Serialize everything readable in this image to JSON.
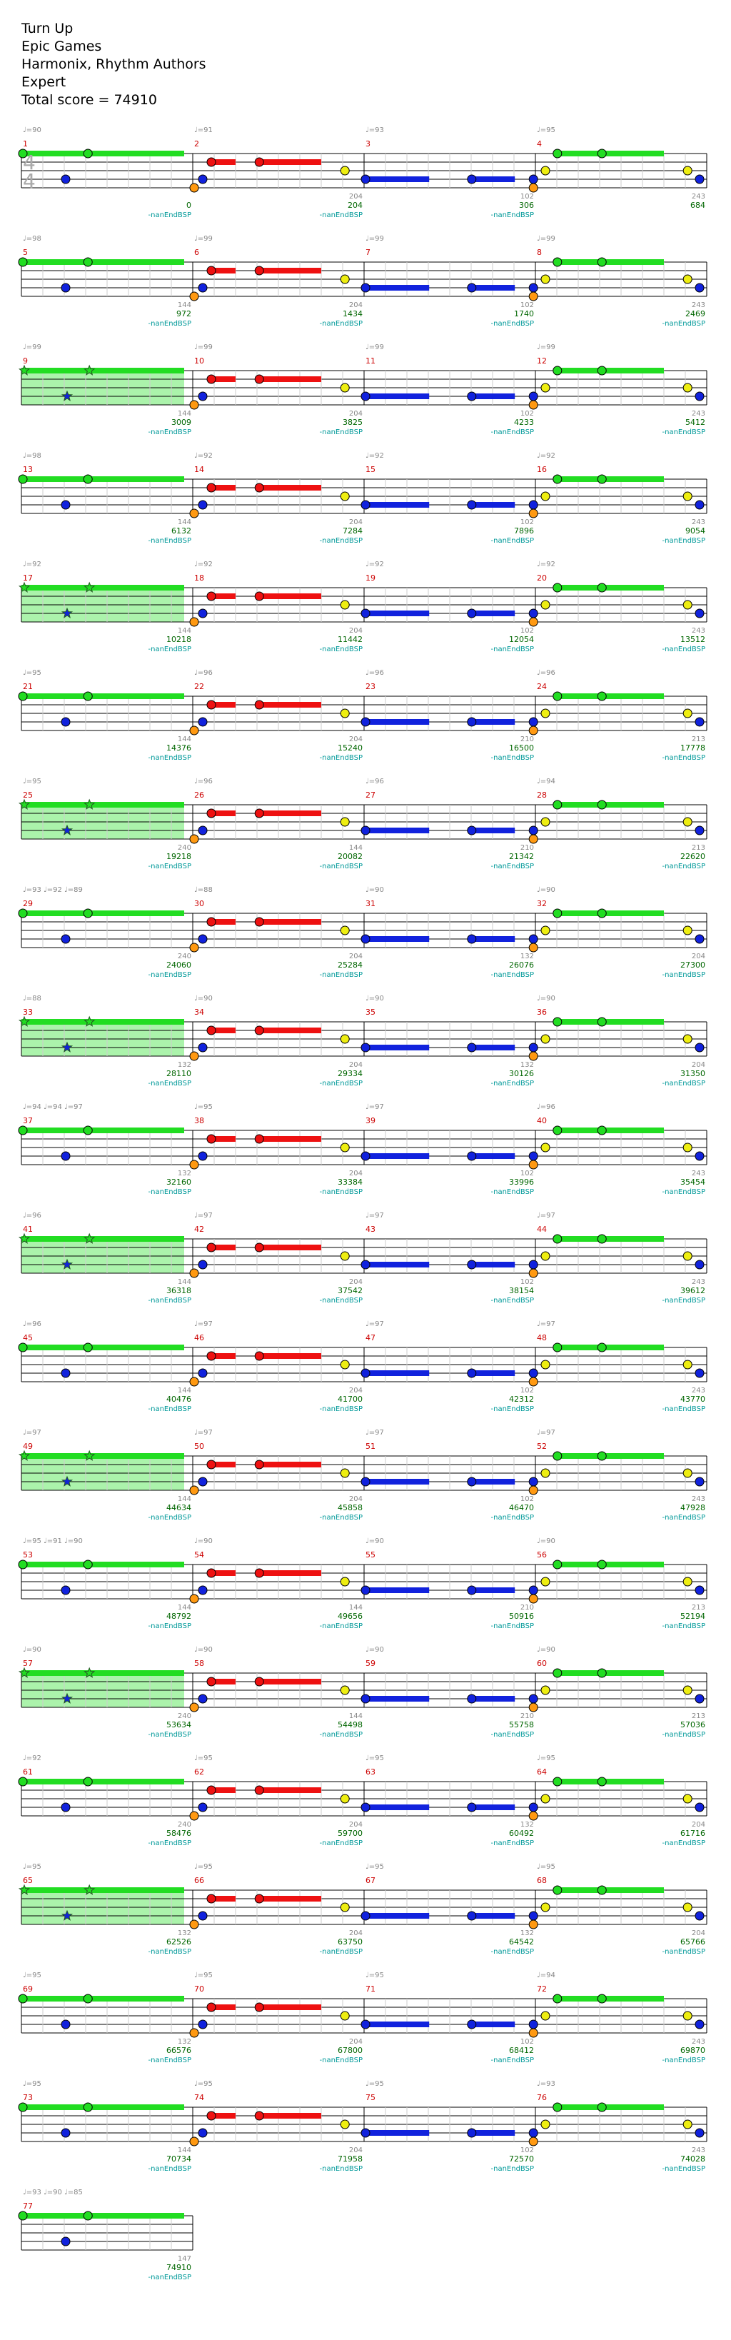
{
  "song": {
    "title": "Turn Up",
    "artist": "Epic Games",
    "charter": "Harmonix, Rhythm Authors",
    "difficulty": "Expert",
    "total_score_label": "Total score = 74910"
  },
  "time_signature": {
    "numerator": "4",
    "denominator": "4"
  },
  "colors": {
    "green": "#22dd22",
    "red": "#ee1111",
    "yellow": "#eeee11",
    "blue": "#1122dd",
    "orange": "#ff9911",
    "measure_number": "#cc0000",
    "score": "#006600",
    "label": "#009999",
    "tempo": "#888888",
    "star_power": "#88ee88"
  },
  "rows": [
    {
      "measures": [
        1,
        2,
        3,
        4
      ],
      "sp": false,
      "tempos": [
        "♩=90",
        "♩=91",
        "♩=93",
        "♩=95"
      ],
      "scores": [
        "0",
        "204",
        "306",
        "684"
      ],
      "bonus": [
        "",
        "204",
        "102",
        "243"
      ],
      "labels": [
        "-nanEndBSP",
        "-nanEndBSP",
        "-nanEndBSP"
      ]
    },
    {
      "measures": [
        5,
        6,
        7,
        8
      ],
      "sp": false,
      "tempos": [
        "♩=98",
        "♩=99",
        "♩=99",
        "♩=99"
      ],
      "scores": [
        "972",
        "1434",
        "1740",
        "2469"
      ],
      "bonus": [
        "144",
        "204",
        "102",
        "243"
      ],
      "labels": [
        "-nanEndBSP",
        "-nanEndBSP",
        "-nanEndBSP",
        "-nanEndBSP"
      ]
    },
    {
      "measures": [
        9,
        10,
        11,
        12
      ],
      "sp": true,
      "tempos": [
        "♩=99",
        "♩=99",
        "♩=99",
        "♩=99"
      ],
      "scores": [
        "3009",
        "3825",
        "4233",
        "5412"
      ],
      "bonus": [
        "144",
        "204",
        "102",
        "243"
      ],
      "labels": [
        "-nanEndBSP",
        "-nanEndBSP",
        "-nanEndBSP",
        "-nanEndBSP"
      ]
    },
    {
      "measures": [
        13,
        14,
        15,
        16
      ],
      "sp": false,
      "tempos": [
        "♩=98",
        "♩=92",
        "♩=92",
        "♩=92"
      ],
      "scores": [
        "6132",
        "7284",
        "7896",
        "9054"
      ],
      "bonus": [
        "144",
        "204",
        "102",
        "243"
      ],
      "labels": [
        "-nanEndBSP",
        "-nanEndBSP",
        "-nanEndBSP",
        "-nanEndBSP"
      ]
    },
    {
      "measures": [
        17,
        18,
        19,
        20
      ],
      "sp": true,
      "tempos": [
        "♩=92",
        "♩=92",
        "♩=92",
        "♩=92"
      ],
      "scores": [
        "10218",
        "11442",
        "12054",
        "13512"
      ],
      "bonus": [
        "144",
        "204",
        "102",
        "243"
      ],
      "labels": [
        "-nanEndBSP",
        "-nanEndBSP",
        "-nanEndBSP",
        "-nanEndBSP"
      ]
    },
    {
      "measures": [
        21,
        22,
        23,
        24
      ],
      "sp": false,
      "tempos": [
        "♩=95",
        "♩=96",
        "♩=96",
        "♩=96"
      ],
      "scores": [
        "14376",
        "15240",
        "16500",
        "17778"
      ],
      "bonus": [
        "144",
        "204",
        "210",
        "213"
      ],
      "labels": [
        "-nanEndBSP",
        "-nanEndBSP",
        "-nanEndBSP",
        "-nanEndBSP"
      ]
    },
    {
      "measures": [
        25,
        26,
        27,
        28
      ],
      "sp": true,
      "tempos": [
        "♩=95",
        "♩=96",
        "♩=96",
        "♩=94"
      ],
      "scores": [
        "19218",
        "20082",
        "21342",
        "22620"
      ],
      "bonus": [
        "240",
        "144",
        "210",
        "213"
      ],
      "labels": [
        "-nanEndBSP",
        "-nanEndBSP",
        "-nanEndBSP",
        "-nanEndBSP"
      ]
    },
    {
      "measures": [
        29,
        30,
        31,
        32
      ],
      "sp": false,
      "tempos": [
        "♩=93 ♩=92 ♩=89",
        "♩=88",
        "♩=90",
        "♩=90"
      ],
      "scores": [
        "24060",
        "25284",
        "26076",
        "27300"
      ],
      "bonus": [
        "240",
        "204",
        "132",
        "204"
      ],
      "labels": [
        "-nanEndBSP",
        "-nanEndBSP",
        "-nanEndBSP",
        "-nanEndBSP"
      ]
    },
    {
      "measures": [
        33,
        34,
        35,
        36
      ],
      "sp": true,
      "tempos": [
        "♩=88",
        "♩=90",
        "♩=90",
        "♩=90"
      ],
      "scores": [
        "28110",
        "29334",
        "30126",
        "31350"
      ],
      "bonus": [
        "132",
        "204",
        "132",
        "204"
      ],
      "labels": [
        "-nanEndBSP",
        "-nanEndBSP",
        "-nanEndBSP",
        "-nanEndBSP"
      ]
    },
    {
      "measures": [
        37,
        38,
        39,
        40
      ],
      "sp": false,
      "tempos": [
        "♩=94 ♩=94 ♩=97",
        "♩=95",
        "♩=97",
        "♩=96"
      ],
      "scores": [
        "32160",
        "33384",
        "33996",
        "35454"
      ],
      "bonus": [
        "132",
        "204",
        "102",
        "243"
      ],
      "labels": [
        "-nanEndBSP",
        "-nanEndBSP",
        "-nanEndBSP",
        "-nanEndBSP"
      ]
    },
    {
      "measures": [
        41,
        42,
        43,
        44
      ],
      "sp": true,
      "tempos": [
        "♩=96",
        "♩=97",
        "♩=97",
        "♩=97"
      ],
      "scores": [
        "36318",
        "37542",
        "38154",
        "39612"
      ],
      "bonus": [
        "144",
        "204",
        "102",
        "243"
      ],
      "labels": [
        "-nanEndBSP",
        "-nanEndBSP",
        "-nanEndBSP",
        "-nanEndBSP"
      ]
    },
    {
      "measures": [
        45,
        46,
        47,
        48
      ],
      "sp": false,
      "tempos": [
        "♩=96",
        "♩=97",
        "♩=97",
        "♩=97"
      ],
      "scores": [
        "40476",
        "41700",
        "42312",
        "43770"
      ],
      "bonus": [
        "144",
        "204",
        "102",
        "243"
      ],
      "labels": [
        "-nanEndBSP",
        "-nanEndBSP",
        "-nanEndBSP",
        "-nanEndBSP"
      ]
    },
    {
      "measures": [
        49,
        50,
        51,
        52
      ],
      "sp": true,
      "tempos": [
        "♩=97",
        "♩=97",
        "♩=97",
        "♩=97"
      ],
      "scores": [
        "44634",
        "45858",
        "46470",
        "47928"
      ],
      "bonus": [
        "144",
        "204",
        "102",
        "243"
      ],
      "labels": [
        "-nanEndBSP",
        "-nanEndBSP",
        "-nanEndBSP",
        "-nanEndBSP"
      ]
    },
    {
      "measures": [
        53,
        54,
        55,
        56
      ],
      "sp": false,
      "tempos": [
        "♩=95 ♩=91 ♩=90",
        "♩=90",
        "♩=90",
        "♩=90"
      ],
      "scores": [
        "48792",
        "49656",
        "50916",
        "52194"
      ],
      "bonus": [
        "144",
        "144",
        "210",
        "213"
      ],
      "labels": [
        "-nanEndBSP",
        "-nanEndBSP",
        "-nanEndBSP",
        "-nanEndBSP"
      ]
    },
    {
      "measures": [
        57,
        58,
        59,
        60
      ],
      "sp": true,
      "tempos": [
        "♩=90",
        "♩=90",
        "♩=90",
        "♩=90"
      ],
      "scores": [
        "53634",
        "54498",
        "55758",
        "57036"
      ],
      "bonus": [
        "240",
        "144",
        "210",
        "213"
      ],
      "labels": [
        "-nanEndBSP",
        "-nanEndBSP",
        "-nanEndBSP",
        "-nanEndBSP"
      ]
    },
    {
      "measures": [
        61,
        62,
        63,
        64
      ],
      "sp": false,
      "tempos": [
        "♩=92",
        "♩=95",
        "♩=95",
        "♩=95"
      ],
      "scores": [
        "58476",
        "59700",
        "60492",
        "61716"
      ],
      "bonus": [
        "240",
        "204",
        "132",
        "204"
      ],
      "labels": [
        "-nanEndBSP",
        "-nanEndBSP",
        "-nanEndBSP",
        "-nanEndBSP"
      ]
    },
    {
      "measures": [
        65,
        66,
        67,
        68
      ],
      "sp": true,
      "tempos": [
        "♩=95",
        "♩=95",
        "♩=95",
        "♩=95"
      ],
      "scores": [
        "62526",
        "63750",
        "64542",
        "65766"
      ],
      "bonus": [
        "132",
        "204",
        "132",
        "204"
      ],
      "labels": [
        "-nanEndBSP",
        "-nanEndBSP",
        "-nanEndBSP",
        "-nanEndBSP"
      ]
    },
    {
      "measures": [
        69,
        70,
        71,
        72
      ],
      "sp": false,
      "tempos": [
        "♩=95",
        "♩=95",
        "♩=95",
        "♩=94"
      ],
      "scores": [
        "66576",
        "67800",
        "68412",
        "69870"
      ],
      "bonus": [
        "132",
        "204",
        "102",
        "243"
      ],
      "labels": [
        "-nanEndBSP",
        "-nanEndBSP",
        "-nanEndBSP",
        "-nanEndBSP"
      ]
    },
    {
      "measures": [
        73,
        74,
        75,
        76
      ],
      "sp": false,
      "tempos": [
        "♩=95",
        "♩=95",
        "♩=95",
        "♩=93"
      ],
      "scores": [
        "70734",
        "71958",
        "72570",
        "74028"
      ],
      "bonus": [
        "144",
        "204",
        "102",
        "243"
      ],
      "labels": [
        "-nanEndBSP",
        "-nanEndBSP",
        "-nanEndBSP",
        "-nanEndBSP"
      ]
    },
    {
      "measures": [
        77
      ],
      "sp": false,
      "tempos": [
        "♩=93 ♩=90 ♩=85"
      ],
      "scores": [
        "74910"
      ],
      "bonus": [
        "147"
      ],
      "labels": [
        "-nanEndBSP"
      ]
    }
  ]
}
